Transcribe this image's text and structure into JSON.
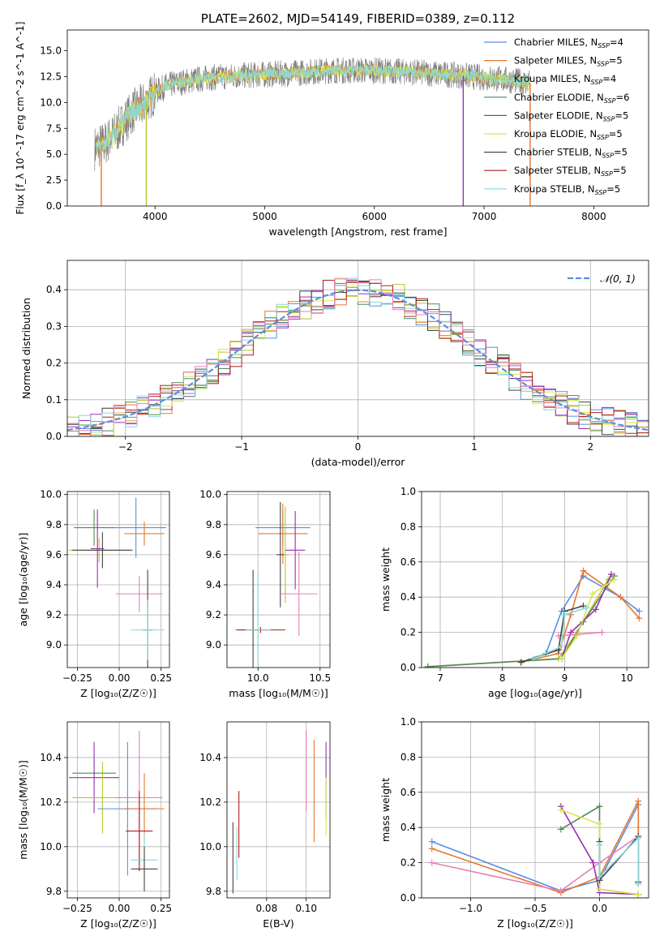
{
  "colors": {
    "chabrier_miles": "#5b8ee0",
    "salpeter_miles": "#e8772c",
    "kroupa_miles": "#b9c42a",
    "chabrier_elodie": "#4f8a56",
    "salpeter_elodie": "#9a2fb3",
    "kroupa_elodie": "#d8e84a",
    "chabrier_stelib": "#444444",
    "salpeter_stelib": "#b41e1e",
    "kroupa_stelib": "#86d8dc",
    "pink": "#e87fb6",
    "observed": "#808080",
    "gaussian": "#5b8ee0"
  },
  "chart_data": [
    {
      "id": "spectrum",
      "type": "line",
      "title": "PLATE=2602, MJD=54149, FIBERID=0389, z=0.112",
      "xlabel": "wavelength [Angstrom, rest frame]",
      "ylabel": "Flux [f_λ 10^-17 erg cm^-2 s^-1 A^-1]",
      "xlim": [
        3200,
        8500
      ],
      "ylim": [
        0,
        17
      ],
      "xticks": [
        "4000",
        "5000",
        "6000",
        "7000",
        "8000"
      ],
      "yticks": [
        "0.0",
        "2.5",
        "5.0",
        "7.5",
        "10.0",
        "12.5",
        "15.0"
      ],
      "legend": [
        {
          "label": "Chabrier MILES, N",
          "sub": "SSP",
          "val": "=4"
        },
        {
          "label": "Salpeter MILES, N",
          "sub": "SSP",
          "val": "=5"
        },
        {
          "label": "Kroupa MILES, N",
          "sub": "SSP",
          "val": "=4"
        },
        {
          "label": "Chabrier ELODIE, N",
          "sub": "SSP",
          "val": "=6"
        },
        {
          "label": "Salpeter ELODIE, N",
          "sub": "SSP",
          "val": "=5"
        },
        {
          "label": "Kroupa ELODIE, N",
          "sub": "SSP",
          "val": "=5"
        },
        {
          "label": "Chabrier STELIB, N",
          "sub": "SSP",
          "val": "=5"
        },
        {
          "label": "Salpeter STELIB, N",
          "sub": "SSP",
          "val": "=5"
        },
        {
          "label": "Kroupa STELIB, N",
          "sub": "SSP",
          "val": "=5"
        }
      ],
      "legend_position": "right",
      "continuum": {
        "x": [
          3450,
          3550,
          3650,
          3800,
          3900,
          4000,
          4100,
          4300,
          4500,
          4800,
          5200,
          5600,
          6000,
          6400,
          6800,
          7200,
          7420
        ],
        "y": [
          5.6,
          6.1,
          7.2,
          9.2,
          9.8,
          11.0,
          11.6,
          12.1,
          12.4,
          12.6,
          12.8,
          13.1,
          13.1,
          12.9,
          12.6,
          12.2,
          11.9
        ]
      },
      "model_cutoffs": [
        {
          "model": "salpeter_miles",
          "x": 3510
        },
        {
          "model": "kroupa_miles",
          "x": 3920
        },
        {
          "model": "salpeter_elodie",
          "x": 6810
        },
        {
          "model": "salpeter_miles",
          "x": 7420
        }
      ]
    },
    {
      "id": "residuals",
      "type": "histogram",
      "xlabel": "(data-model)/error",
      "ylabel": "Normed distribution",
      "xlim": [
        -2.5,
        2.5
      ],
      "ylim": [
        0,
        0.48
      ],
      "xticks": [
        "−2",
        "−1",
        "0",
        "1",
        "2"
      ],
      "yticks": [
        "0.0",
        "0.1",
        "0.2",
        "0.3",
        "0.4"
      ],
      "legend": "𝒩(0, 1)",
      "legend_position": "top-right",
      "bin_width": 0.1,
      "grid": true
    },
    {
      "id": "age_vs_Z",
      "type": "errorbar",
      "xlabel": "Z [log₁₀(Z/Z☉)]",
      "ylabel": "age  [log₁₀(age/yr)]",
      "xlim": [
        -0.31,
        0.3
      ],
      "ylim": [
        8.85,
        10.02
      ],
      "xticks": [
        "−0.25",
        "0.00",
        "0.25"
      ],
      "yticks": [
        "9.0",
        "9.2",
        "9.4",
        "9.6",
        "9.8",
        "10.0"
      ],
      "grid": true,
      "points": [
        {
          "model": "chabrier_miles",
          "x": 0.1,
          "xerr": 0.18,
          "y": 9.78,
          "yerr": 0.2
        },
        {
          "model": "salpeter_miles",
          "x": 0.15,
          "xerr": 0.12,
          "y": 9.74,
          "yerr": 0.08
        },
        {
          "model": "kroupa_miles",
          "x": -0.12,
          "xerr": 0.18,
          "y": 9.63,
          "yerr": 0.08
        },
        {
          "model": "chabrier_elodie",
          "x": -0.15,
          "xerr": 0.12,
          "y": 9.78,
          "yerr": 0.12
        },
        {
          "model": "salpeter_elodie",
          "x": -0.13,
          "xerr": 0.04,
          "y": 9.64,
          "yerr": 0.26
        },
        {
          "model": "chabrier_stelib",
          "x": -0.1,
          "xerr": 0.18,
          "y": 9.63,
          "yerr": 0.12
        },
        {
          "model": "pink",
          "x": 0.12,
          "xerr": 0.14,
          "y": 9.34,
          "yerr": 0.12
        },
        {
          "model": "chabrier_stelib",
          "x": 0.17,
          "xerr": 0.03,
          "y": 9.1,
          "yerr": 0.4
        },
        {
          "model": "kroupa_stelib",
          "x": 0.17,
          "xerr": 0.1,
          "y": 9.1,
          "yerr": 0.2
        }
      ]
    },
    {
      "id": "age_vs_mass",
      "type": "errorbar",
      "xlabel": "mass [log₁₀(M/M☉)]",
      "ylabel": "",
      "xlim": [
        9.75,
        10.58
      ],
      "ylim": [
        8.85,
        10.02
      ],
      "xticks": [
        "10.0",
        "10.5"
      ],
      "yticks": [
        "9.0",
        "9.2",
        "9.4",
        "9.6",
        "9.8",
        "10.0"
      ],
      "grid": true,
      "points": [
        {
          "model": "chabrier_miles",
          "x": 10.2,
          "xerr": 0.22,
          "y": 9.78,
          "yerr": 0.12
        },
        {
          "model": "salpeter_miles",
          "x": 10.2,
          "xerr": 0.2,
          "y": 9.74,
          "yerr": 0.2
        },
        {
          "model": "kroupa_miles",
          "x": 10.22,
          "xerr": 0.03,
          "y": 9.6,
          "yerr": 0.32
        },
        {
          "model": "salpeter_elodie",
          "x": 10.3,
          "xerr": 0.08,
          "y": 9.63,
          "yerr": 0.26
        },
        {
          "model": "chabrier_stelib",
          "x": 10.18,
          "xerr": 0.03,
          "y": 9.6,
          "yerr": 0.35
        },
        {
          "model": "pink",
          "x": 10.33,
          "xerr": 0.15,
          "y": 9.34,
          "yerr": 0.28
        },
        {
          "model": "chabrier_stelib",
          "x": 9.96,
          "xerr": 0.12,
          "y": 9.1,
          "yerr": 0.4
        },
        {
          "model": "salpeter_stelib",
          "x": 10.02,
          "xerr": 0.2,
          "y": 9.1,
          "yerr": 0.02
        },
        {
          "model": "kroupa_stelib",
          "x": 10.0,
          "xerr": 0.1,
          "y": 9.1,
          "yerr": 0.38
        }
      ]
    },
    {
      "id": "weight_vs_age",
      "type": "line",
      "xlabel": "age  [log₁₀(age/yr)]",
      "ylabel": "mass weight",
      "xlim": [
        6.7,
        10.35
      ],
      "ylim": [
        0,
        1
      ],
      "xticks": [
        "7",
        "8",
        "9",
        "10"
      ],
      "yticks": [
        "0.0",
        "0.2",
        "0.4",
        "0.6",
        "0.8",
        "1.0"
      ],
      "grid": true,
      "series": [
        {
          "model": "chabrier_miles",
          "x": [
            8.3,
            8.7,
            8.95,
            9.3,
            9.9,
            10.2
          ],
          "y": [
            0.03,
            0.08,
            0.32,
            0.52,
            0.4,
            0.32
          ]
        },
        {
          "model": "salpeter_miles",
          "x": [
            8.3,
            8.9,
            9.1,
            9.3,
            9.9,
            10.2
          ],
          "y": [
            0.03,
            0.08,
            0.3,
            0.55,
            0.4,
            0.28
          ]
        },
        {
          "model": "kroupa_miles",
          "x": [
            6.8,
            8.9,
            9.2,
            9.7
          ],
          "y": [
            0.005,
            0.05,
            0.2,
            0.5
          ]
        },
        {
          "model": "chabrier_elodie",
          "x": [
            6.8,
            8.95,
            9.3,
            9.8
          ],
          "y": [
            0.005,
            0.05,
            0.26,
            0.52
          ]
        },
        {
          "model": "salpeter_elodie",
          "x": [
            8.95,
            9.1,
            9.5,
            9.75
          ],
          "y": [
            0.05,
            0.2,
            0.33,
            0.53
          ]
        },
        {
          "model": "kroupa_elodie",
          "x": [
            8.95,
            9.2,
            9.45,
            9.8
          ],
          "y": [
            0.05,
            0.18,
            0.42,
            0.5
          ]
        },
        {
          "model": "pink",
          "x": [
            8.9,
            9.6
          ],
          "y": [
            0.18,
            0.2
          ]
        },
        {
          "model": "chabrier_stelib",
          "x": [
            8.3,
            8.9,
            9.0,
            9.3
          ],
          "y": [
            0.03,
            0.1,
            0.32,
            0.35
          ]
        },
        {
          "model": "kroupa_stelib",
          "x": [
            8.5,
            8.95,
            9.0,
            9.35
          ],
          "y": [
            0.05,
            0.12,
            0.3,
            0.34
          ]
        }
      ]
    },
    {
      "id": "mass_vs_Z",
      "type": "errorbar",
      "xlabel": "Z [log₁₀(Z/Z☉)]",
      "ylabel": "mass [log₁₀(M/M☉)]",
      "xlim": [
        -0.31,
        0.3
      ],
      "ylim": [
        9.77,
        10.56
      ],
      "xticks": [
        "−0.25",
        "0.00",
        "0.25"
      ],
      "yticks": [
        "9.8",
        "10.0",
        "10.2",
        "10.4"
      ],
      "grid": true,
      "points": [
        {
          "model": "chabrier_elodie",
          "x": -0.15,
          "xerr": 0.13,
          "y": 10.33,
          "yerr": 0.06
        },
        {
          "model": "salpeter_elodie",
          "x": -0.15,
          "xerr": 0.15,
          "y": 10.31,
          "yerr": 0.16
        },
        {
          "model": "kroupa_miles",
          "x": -0.1,
          "xerr": 0.18,
          "y": 10.22,
          "yerr": 0.16
        },
        {
          "model": "chabrier_miles",
          "x": 0.05,
          "xerr": 0.18,
          "y": 10.17,
          "yerr": 0.3
        },
        {
          "model": "salpeter_miles",
          "x": 0.15,
          "xerr": 0.12,
          "y": 10.17,
          "yerr": 0.16
        },
        {
          "model": "pink",
          "x": 0.12,
          "xerr": 0.14,
          "y": 10.22,
          "yerr": 0.3
        },
        {
          "model": "salpeter_stelib",
          "x": 0.12,
          "xerr": 0.08,
          "y": 10.07,
          "yerr": 0.18
        },
        {
          "model": "kroupa_stelib",
          "x": 0.15,
          "xerr": 0.08,
          "y": 9.94,
          "yerr": 0.12
        },
        {
          "model": "chabrier_stelib",
          "x": 0.15,
          "xerr": 0.08,
          "y": 9.9,
          "yerr": 0.1
        }
      ]
    },
    {
      "id": "mass_vs_EBV",
      "type": "errorbar",
      "xlabel": "E(B-V)",
      "ylabel": "",
      "xlim": [
        0.06,
        0.112
      ],
      "ylim": [
        9.77,
        10.56
      ],
      "xticks": [
        "0.08",
        "0.10"
      ],
      "yticks": [
        "9.8",
        "10.0",
        "10.2",
        "10.4"
      ],
      "grid": true,
      "points": [
        {
          "model": "chabrier_stelib",
          "x": 0.063,
          "y": 9.95,
          "yerr": 0.16
        },
        {
          "model": "kroupa_stelib",
          "x": 0.065,
          "y": 9.97,
          "yerr": 0.12
        },
        {
          "model": "salpeter_stelib",
          "x": 0.066,
          "y": 10.1,
          "yerr": 0.15
        },
        {
          "model": "pink",
          "x": 0.1,
          "y": 10.34,
          "yerr": 0.18
        },
        {
          "model": "salpeter_miles",
          "x": 0.104,
          "y": 10.25,
          "yerr": 0.23
        },
        {
          "model": "salpeter_elodie",
          "x": 0.11,
          "y": 10.3,
          "yerr": 0.17
        },
        {
          "model": "kroupa_elodie",
          "x": 0.11,
          "y": 10.18,
          "yerr": 0.13
        }
      ]
    },
    {
      "id": "weight_vs_Z",
      "type": "line",
      "xlabel": "Z [log₁₀(Z/Z☉)]",
      "ylabel": "mass weight",
      "xlim": [
        -1.38,
        0.38
      ],
      "ylim": [
        0,
        1
      ],
      "xticks": [
        "−1.0",
        "−0.5",
        "0.0"
      ],
      "yticks": [
        "0.0",
        "0.2",
        "0.4",
        "0.6",
        "0.8",
        "1.0"
      ],
      "grid": true,
      "series": [
        {
          "model": "chabrier_miles",
          "x": [
            -1.3,
            -0.3,
            0.0,
            0.3,
            0.3
          ],
          "y": [
            0.32,
            0.04,
            0.1,
            0.53,
            0.09
          ]
        },
        {
          "model": "salpeter_miles",
          "x": [
            -1.3,
            -0.3,
            0.0,
            0.3,
            0.3
          ],
          "y": [
            0.28,
            0.03,
            0.12,
            0.55,
            0.08
          ]
        },
        {
          "model": "pink",
          "x": [
            -1.3,
            -0.3,
            0.0,
            0.3
          ],
          "y": [
            0.2,
            0.04,
            0.2,
            0.35
          ]
        },
        {
          "model": "chabrier_elodie",
          "x": [
            -0.3,
            0.0,
            0.0,
            0.3
          ],
          "y": [
            0.39,
            0.52,
            0.05,
            0.02
          ]
        },
        {
          "model": "salpeter_elodie",
          "x": [
            -0.3,
            -0.05,
            0.0,
            0.3
          ],
          "y": [
            0.52,
            0.2,
            0.03,
            0.02
          ]
        },
        {
          "model": "kroupa_elodie",
          "x": [
            -0.3,
            0.0,
            0.0,
            0.3
          ],
          "y": [
            0.5,
            0.42,
            0.05,
            0.02
          ]
        },
        {
          "model": "chabrier_stelib",
          "x": [
            0.0,
            0.0,
            0.3,
            0.3
          ],
          "y": [
            0.32,
            0.1,
            0.35,
            0.09
          ]
        },
        {
          "model": "kroupa_stelib",
          "x": [
            0.0,
            0.0,
            0.3,
            0.3
          ],
          "y": [
            0.3,
            0.12,
            0.34,
            0.08
          ]
        }
      ]
    }
  ]
}
